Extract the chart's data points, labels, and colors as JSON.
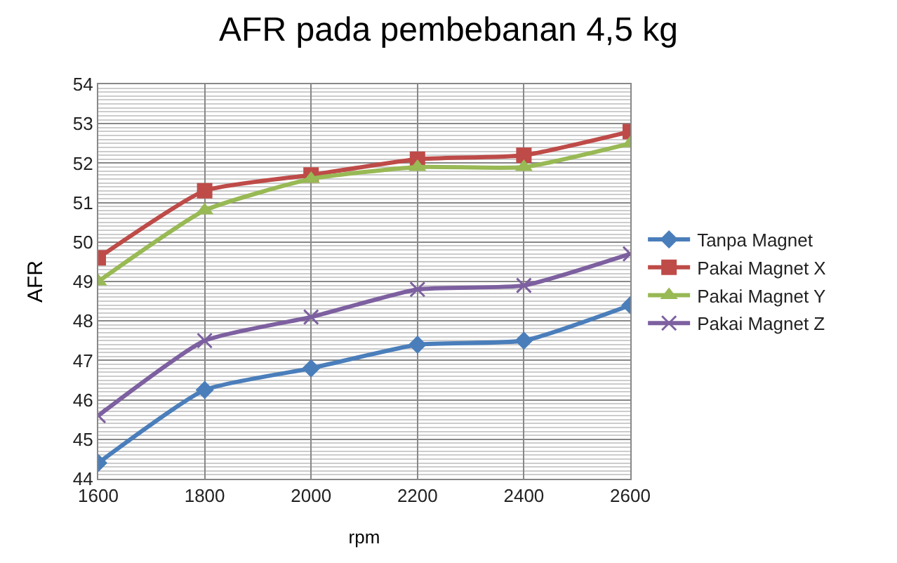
{
  "chart_data": {
    "type": "line",
    "title": "AFR pada pembebanan 4,5 kg",
    "xlabel": "rpm",
    "ylabel": "AFR",
    "x": [
      1600,
      1800,
      2000,
      2200,
      2400,
      2600
    ],
    "xlim": [
      1600,
      2600
    ],
    "xticks": [
      1600,
      1800,
      2000,
      2200,
      2400,
      2600
    ],
    "ylim": [
      44,
      54
    ],
    "yticks": [
      44,
      45,
      46,
      47,
      48,
      49,
      50,
      51,
      52,
      53,
      54
    ],
    "grid": true,
    "legend": "right",
    "line_style": "solid",
    "series": [
      {
        "name": "Tanpa Magnet",
        "color": "#4a7ebb",
        "marker": "diamond",
        "values": [
          44.4,
          46.25,
          46.8,
          47.4,
          47.5,
          48.4
        ]
      },
      {
        "name": "Pakai Magnet X",
        "color": "#be4b48",
        "marker": "square",
        "values": [
          49.6,
          51.3,
          51.7,
          52.1,
          52.2,
          52.8
        ]
      },
      {
        "name": "Pakai Magnet Y",
        "color": "#98b954",
        "marker": "triangle",
        "values": [
          49.0,
          50.8,
          51.6,
          51.9,
          51.9,
          52.5
        ]
      },
      {
        "name": "Pakai Magnet Z",
        "color": "#7d60a0",
        "marker": "cross",
        "values": [
          45.6,
          47.5,
          48.1,
          48.8,
          48.9,
          49.7
        ]
      }
    ]
  }
}
